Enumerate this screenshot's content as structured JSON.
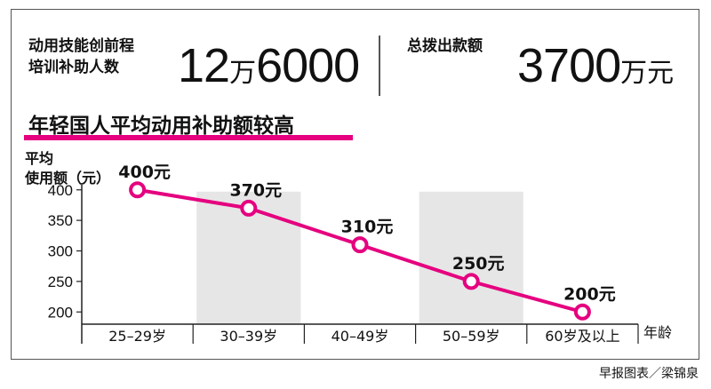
{
  "stats": [
    {
      "label_lines": [
        "动用技能创前程",
        "培训补助人数"
      ],
      "value_parts": [
        "12",
        "万",
        "6000"
      ]
    },
    {
      "label_lines": [
        "总拨出款额"
      ],
      "value_parts": [
        "3700",
        "万元"
      ]
    }
  ],
  "colors": {
    "accent": "#e5007f",
    "band": "#e6e6e6",
    "axis": "#222222"
  },
  "chart_data": {
    "type": "line",
    "title": "年轻国人平均动用补助额较高",
    "ylabel_lines": [
      "平均",
      "使用额（元）"
    ],
    "xlabel": "年龄",
    "categories": [
      "25–29岁",
      "30–39岁",
      "40–49岁",
      "50–59岁",
      "60岁及以上"
    ],
    "series": [
      {
        "values": [
          400,
          370,
          310,
          250,
          200
        ]
      }
    ],
    "data_labels": [
      "400元",
      "370元",
      "310元",
      "250元",
      "200元"
    ],
    "yticks": [
      200,
      250,
      300,
      350,
      400
    ],
    "ylim": [
      180,
      420
    ],
    "shaded_categories": [
      1,
      3
    ],
    "grid": false,
    "legend": "none"
  },
  "source": "早报图表／梁锦泉"
}
